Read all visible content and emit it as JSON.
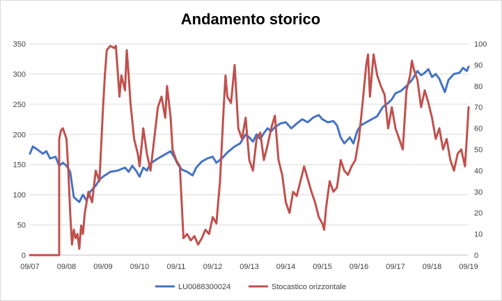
{
  "chart_data": {
    "type": "line",
    "title": "Andamento storico",
    "xlabel": "",
    "ylabel": "",
    "x_tick_labels": [
      "09/07",
      "09/08",
      "09/09",
      "09/10",
      "09/11",
      "09/12",
      "09/13",
      "09/14",
      "09/15",
      "09/16",
      "09/17",
      "09/18",
      "09/19"
    ],
    "y_left": {
      "min": 0,
      "max": 350,
      "ticks": [
        0,
        50,
        100,
        150,
        200,
        250,
        300,
        350
      ]
    },
    "y_right": {
      "min": 0,
      "max": 100,
      "ticks": [
        0,
        10,
        20,
        30,
        40,
        50,
        60,
        70,
        80,
        90,
        100
      ]
    },
    "grid": "horizontal",
    "legend_position": "bottom",
    "series": [
      {
        "name": "LU0088300024",
        "axis": "left",
        "color": "#4472c4",
        "points": [
          [
            0.0,
            168
          ],
          [
            0.08,
            180
          ],
          [
            0.2,
            175
          ],
          [
            0.35,
            168
          ],
          [
            0.45,
            172
          ],
          [
            0.55,
            160
          ],
          [
            0.7,
            163
          ],
          [
            0.8,
            148
          ],
          [
            0.9,
            153
          ],
          [
            1.0,
            148
          ],
          [
            1.1,
            138
          ],
          [
            1.2,
            96
          ],
          [
            1.35,
            88
          ],
          [
            1.45,
            100
          ],
          [
            1.55,
            90
          ],
          [
            1.65,
            105
          ],
          [
            1.8,
            115
          ],
          [
            1.9,
            125
          ],
          [
            2.0,
            130
          ],
          [
            2.2,
            138
          ],
          [
            2.4,
            140
          ],
          [
            2.6,
            145
          ],
          [
            2.7,
            138
          ],
          [
            2.8,
            148
          ],
          [
            2.9,
            140
          ],
          [
            3.0,
            130
          ],
          [
            3.1,
            145
          ],
          [
            3.2,
            140
          ],
          [
            3.3,
            152
          ],
          [
            3.5,
            160
          ],
          [
            3.7,
            167
          ],
          [
            3.85,
            172
          ],
          [
            3.95,
            162
          ],
          [
            4.05,
            150
          ],
          [
            4.15,
            142
          ],
          [
            4.3,
            138
          ],
          [
            4.45,
            132
          ],
          [
            4.55,
            145
          ],
          [
            4.7,
            155
          ],
          [
            4.85,
            160
          ],
          [
            5.0,
            163
          ],
          [
            5.1,
            153
          ],
          [
            5.25,
            160
          ],
          [
            5.4,
            170
          ],
          [
            5.6,
            180
          ],
          [
            5.75,
            185
          ],
          [
            5.9,
            200
          ],
          [
            6.0,
            195
          ],
          [
            6.1,
            188
          ],
          [
            6.2,
            200
          ],
          [
            6.3,
            192
          ],
          [
            6.4,
            202
          ],
          [
            6.5,
            210
          ],
          [
            6.6,
            205
          ],
          [
            6.7,
            212
          ],
          [
            6.85,
            218
          ],
          [
            7.0,
            220
          ],
          [
            7.15,
            210
          ],
          [
            7.3,
            218
          ],
          [
            7.45,
            225
          ],
          [
            7.6,
            220
          ],
          [
            7.75,
            228
          ],
          [
            7.9,
            232
          ],
          [
            8.0,
            225
          ],
          [
            8.15,
            220
          ],
          [
            8.3,
            222
          ],
          [
            8.4,
            215
          ],
          [
            8.5,
            195
          ],
          [
            8.6,
            185
          ],
          [
            8.75,
            195
          ],
          [
            8.85,
            185
          ],
          [
            8.95,
            205
          ],
          [
            9.05,
            215
          ],
          [
            9.2,
            220
          ],
          [
            9.35,
            225
          ],
          [
            9.5,
            230
          ],
          [
            9.65,
            245
          ],
          [
            9.8,
            252
          ],
          [
            9.9,
            258
          ],
          [
            10.0,
            268
          ],
          [
            10.15,
            272
          ],
          [
            10.3,
            280
          ],
          [
            10.45,
            290
          ],
          [
            10.6,
            305
          ],
          [
            10.7,
            298
          ],
          [
            10.8,
            302
          ],
          [
            10.9,
            308
          ],
          [
            11.0,
            295
          ],
          [
            11.1,
            300
          ],
          [
            11.2,
            292
          ],
          [
            11.35,
            270
          ],
          [
            11.45,
            290
          ],
          [
            11.6,
            300
          ],
          [
            11.75,
            302
          ],
          [
            11.85,
            310
          ],
          [
            11.95,
            305
          ],
          [
            12.0,
            312
          ]
        ]
      },
      {
        "name": "Stocastico orizzontale",
        "axis": "right",
        "color": "#c0504d",
        "points": [
          [
            0.0,
            0
          ],
          [
            0.8,
            0
          ],
          [
            0.8,
            55
          ],
          [
            0.85,
            59
          ],
          [
            0.9,
            60
          ],
          [
            1.0,
            55
          ],
          [
            1.05,
            40
          ],
          [
            1.1,
            20
          ],
          [
            1.15,
            5
          ],
          [
            1.2,
            12
          ],
          [
            1.25,
            8
          ],
          [
            1.3,
            10
          ],
          [
            1.35,
            3
          ],
          [
            1.4,
            14
          ],
          [
            1.45,
            10
          ],
          [
            1.5,
            20
          ],
          [
            1.6,
            30
          ],
          [
            1.7,
            25
          ],
          [
            1.8,
            40
          ],
          [
            1.9,
            35
          ],
          [
            2.0,
            70
          ],
          [
            2.05,
            85
          ],
          [
            2.1,
            97
          ],
          [
            2.2,
            99
          ],
          [
            2.3,
            98
          ],
          [
            2.35,
            99
          ],
          [
            2.45,
            75
          ],
          [
            2.5,
            85
          ],
          [
            2.6,
            78
          ],
          [
            2.65,
            97
          ],
          [
            2.7,
            85
          ],
          [
            2.75,
            72
          ],
          [
            2.85,
            55
          ],
          [
            2.95,
            48
          ],
          [
            3.0,
            42
          ],
          [
            3.1,
            60
          ],
          [
            3.2,
            48
          ],
          [
            3.3,
            40
          ],
          [
            3.4,
            55
          ],
          [
            3.5,
            70
          ],
          [
            3.6,
            75
          ],
          [
            3.7,
            65
          ],
          [
            3.75,
            80
          ],
          [
            3.85,
            65
          ],
          [
            3.9,
            50
          ],
          [
            4.0,
            45
          ],
          [
            4.1,
            42
          ],
          [
            4.15,
            25
          ],
          [
            4.2,
            8
          ],
          [
            4.3,
            10
          ],
          [
            4.4,
            7
          ],
          [
            4.5,
            9
          ],
          [
            4.6,
            5
          ],
          [
            4.7,
            8
          ],
          [
            4.8,
            12
          ],
          [
            4.9,
            10
          ],
          [
            5.0,
            18
          ],
          [
            5.1,
            15
          ],
          [
            5.2,
            35
          ],
          [
            5.3,
            70
          ],
          [
            5.35,
            85
          ],
          [
            5.4,
            75
          ],
          [
            5.5,
            72
          ],
          [
            5.6,
            90
          ],
          [
            5.7,
            60
          ],
          [
            5.8,
            55
          ],
          [
            5.9,
            65
          ],
          [
            6.0,
            45
          ],
          [
            6.1,
            40
          ],
          [
            6.2,
            55
          ],
          [
            6.3,
            58
          ],
          [
            6.4,
            45
          ],
          [
            6.5,
            52
          ],
          [
            6.6,
            60
          ],
          [
            6.7,
            66
          ],
          [
            6.8,
            45
          ],
          [
            6.9,
            38
          ],
          [
            7.0,
            25
          ],
          [
            7.1,
            20
          ],
          [
            7.2,
            30
          ],
          [
            7.3,
            28
          ],
          [
            7.4,
            35
          ],
          [
            7.5,
            42
          ],
          [
            7.6,
            36
          ],
          [
            7.7,
            30
          ],
          [
            7.8,
            25
          ],
          [
            7.9,
            18
          ],
          [
            8.0,
            15
          ],
          [
            8.05,
            12
          ],
          [
            8.1,
            22
          ],
          [
            8.2,
            35
          ],
          [
            8.3,
            30
          ],
          [
            8.4,
            32
          ],
          [
            8.5,
            45
          ],
          [
            8.6,
            40
          ],
          [
            8.7,
            38
          ],
          [
            8.8,
            42
          ],
          [
            8.9,
            45
          ],
          [
            9.0,
            55
          ],
          [
            9.1,
            72
          ],
          [
            9.2,
            90
          ],
          [
            9.25,
            95
          ],
          [
            9.3,
            75
          ],
          [
            9.4,
            95
          ],
          [
            9.5,
            85
          ],
          [
            9.6,
            80
          ],
          [
            9.7,
            76
          ],
          [
            9.8,
            60
          ],
          [
            9.9,
            70
          ],
          [
            10.0,
            60
          ],
          [
            10.1,
            55
          ],
          [
            10.2,
            50
          ],
          [
            10.3,
            78
          ],
          [
            10.4,
            85
          ],
          [
            10.45,
            92
          ],
          [
            10.5,
            88
          ],
          [
            10.6,
            83
          ],
          [
            10.7,
            70
          ],
          [
            10.8,
            78
          ],
          [
            10.9,
            72
          ],
          [
            11.0,
            65
          ],
          [
            11.1,
            55
          ],
          [
            11.2,
            60
          ],
          [
            11.3,
            50
          ],
          [
            11.4,
            55
          ],
          [
            11.5,
            45
          ],
          [
            11.6,
            40
          ],
          [
            11.7,
            48
          ],
          [
            11.8,
            50
          ],
          [
            11.9,
            42
          ],
          [
            11.95,
            55
          ],
          [
            12.0,
            70
          ]
        ]
      }
    ]
  }
}
